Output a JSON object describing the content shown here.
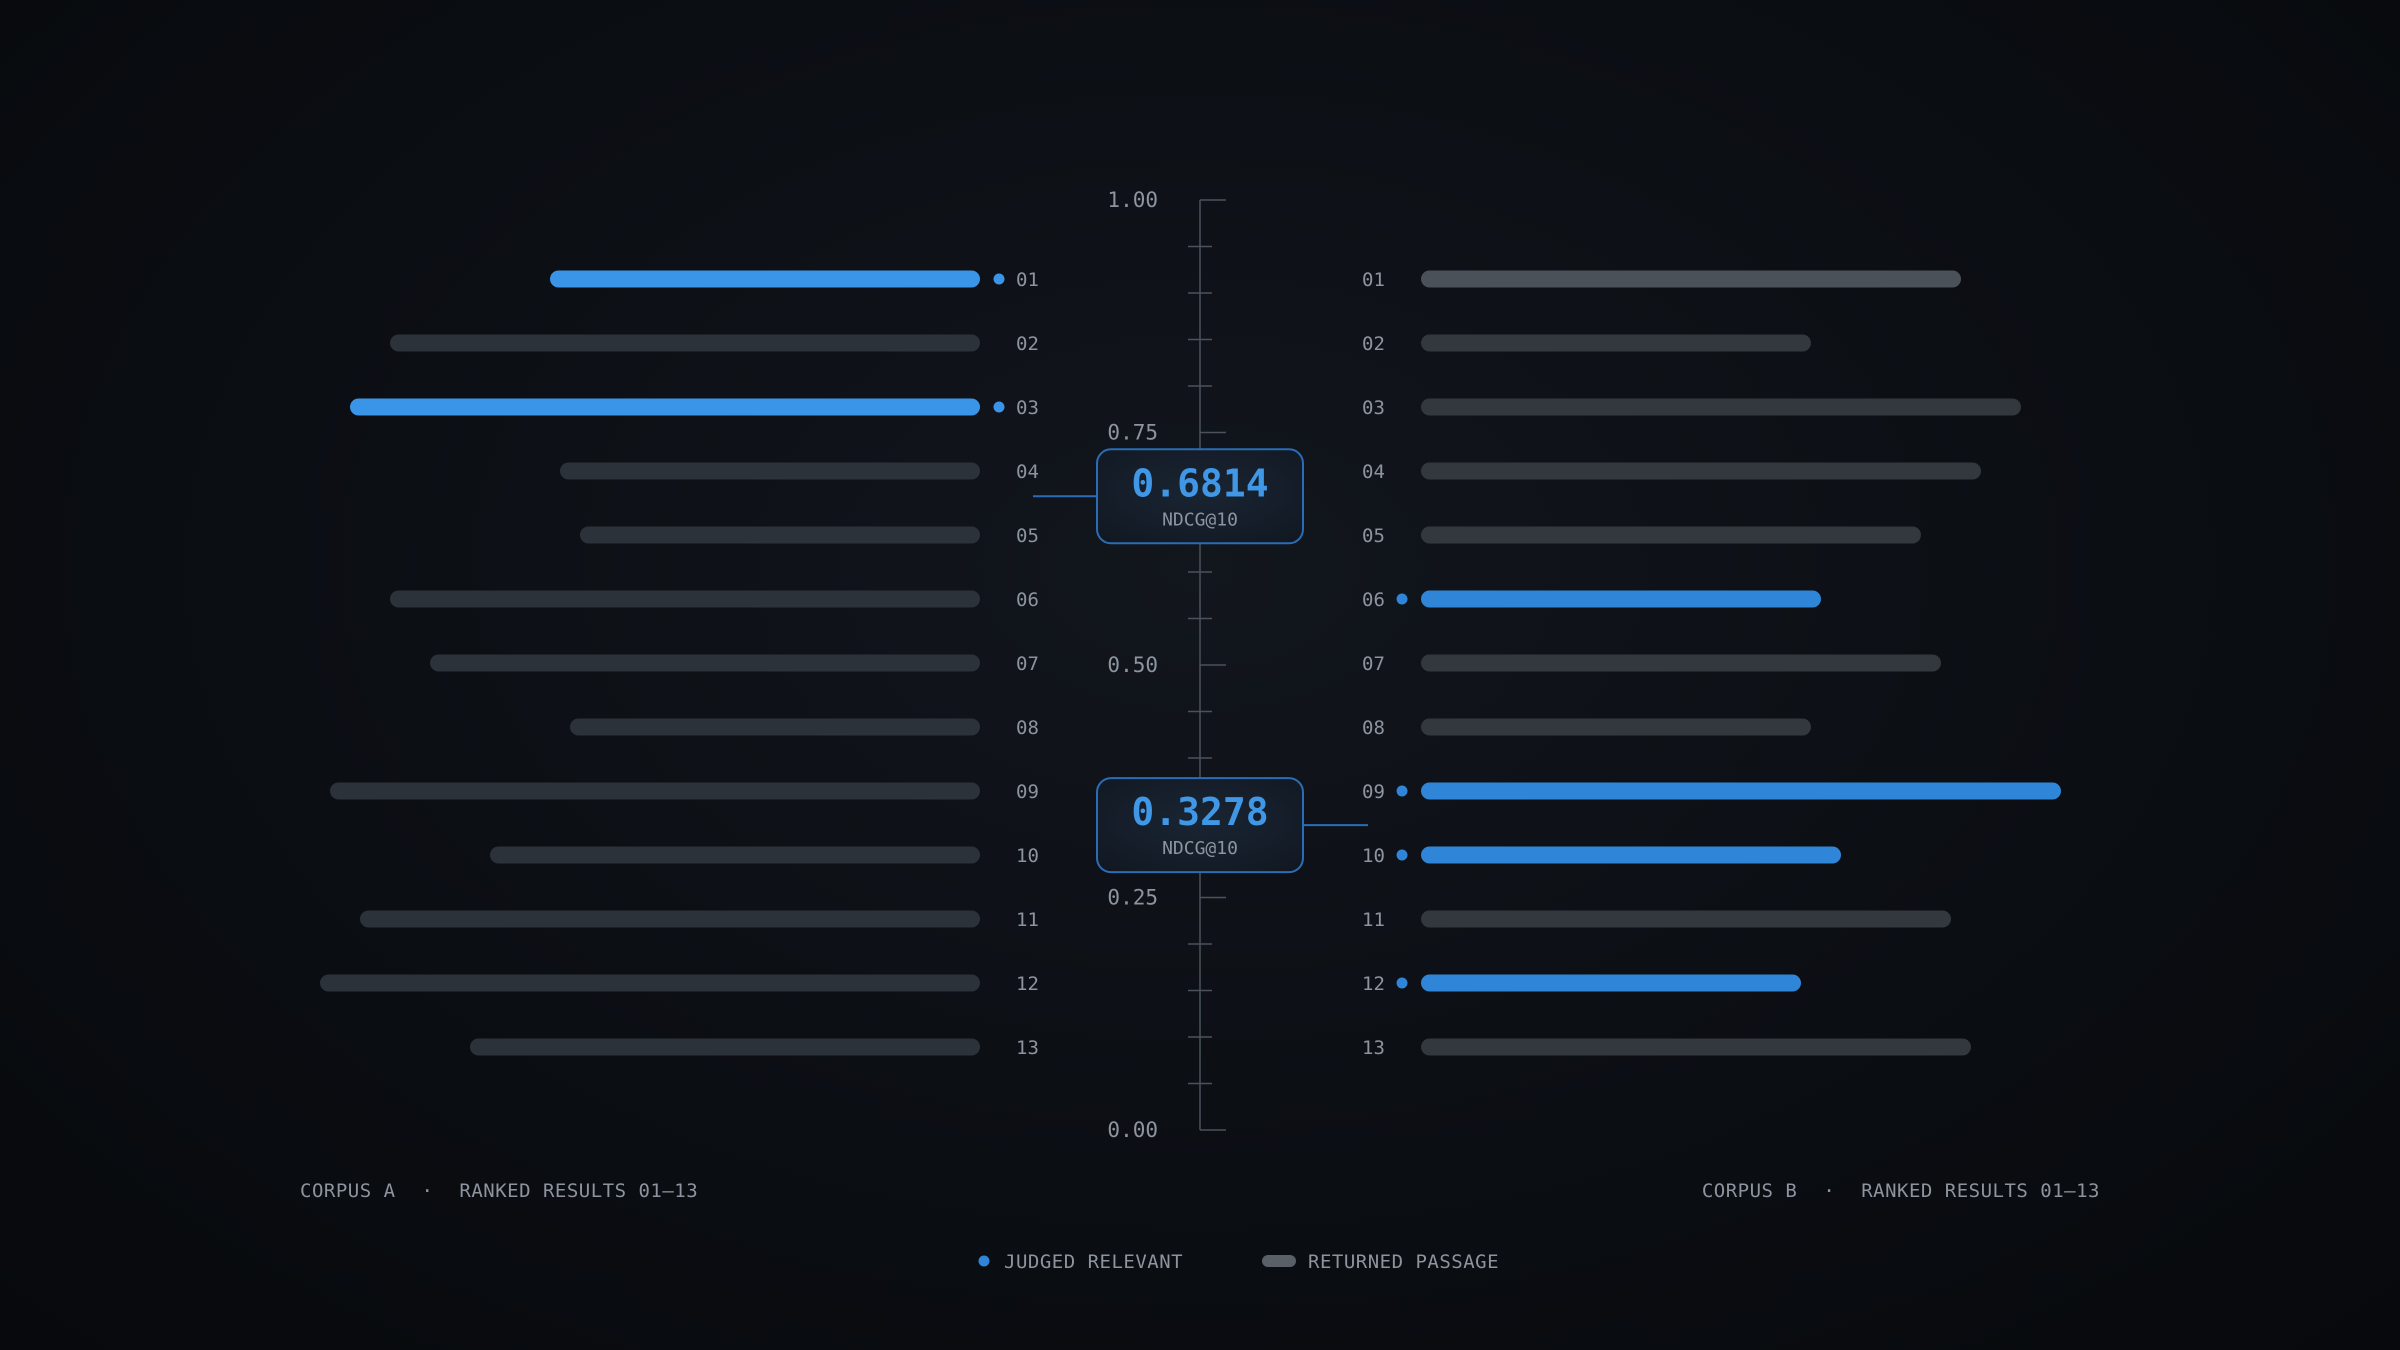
{
  "chart_data": {
    "type": "bar",
    "axis": {
      "ylim": [
        0,
        1
      ],
      "tick_labels": [
        "1.00",
        "0.75",
        "0.50",
        "0.25",
        "0.00"
      ],
      "tick_values": [
        1.0,
        0.75,
        0.5,
        0.25,
        0.0
      ]
    },
    "metric_label": "NDCG@10",
    "ranks": [
      "01",
      "02",
      "03",
      "04",
      "05",
      "06",
      "07",
      "08",
      "09",
      "10",
      "11",
      "12",
      "13"
    ],
    "series": [
      {
        "name": "CORPUS A",
        "caption_corpus": "CORPUS A",
        "caption_range": "RANKED RESULTS 01–13",
        "score": 0.6814,
        "score_label": "0.6814",
        "values": [
          0.43,
          0.59,
          0.63,
          0.42,
          0.4,
          0.59,
          0.55,
          0.41,
          0.65,
          0.49,
          0.62,
          0.66,
          0.51
        ],
        "relevant": [
          true,
          false,
          true,
          false,
          false,
          false,
          false,
          false,
          false,
          false,
          false,
          false,
          false
        ]
      },
      {
        "name": "CORPUS B",
        "caption_corpus": "CORPUS B",
        "caption_range": "RANKED RESULTS 01–13",
        "score": 0.3278,
        "score_label": "0.3278",
        "values": [
          0.54,
          0.39,
          0.6,
          0.56,
          0.5,
          0.4,
          0.52,
          0.39,
          0.64,
          0.42,
          0.53,
          0.38,
          0.55
        ],
        "relevant": [
          false,
          false,
          false,
          false,
          false,
          true,
          false,
          false,
          true,
          true,
          false,
          true,
          false
        ]
      }
    ],
    "legend": [
      {
        "key": "relevant",
        "label": "JUDGED RELEVANT"
      },
      {
        "key": "returned",
        "label": "RETURNED PASSAGE"
      }
    ],
    "separator": "·"
  },
  "colors": {
    "relevant_bar": "#2f86d8",
    "relevant_bar_a": "#3a95e8",
    "neutral_bar": "#2c323a",
    "neutral_bar_b": "#3a3f47",
    "axis": "#4a525c",
    "badge_border": "#2a6db5",
    "badge_fill": "#141c27"
  }
}
